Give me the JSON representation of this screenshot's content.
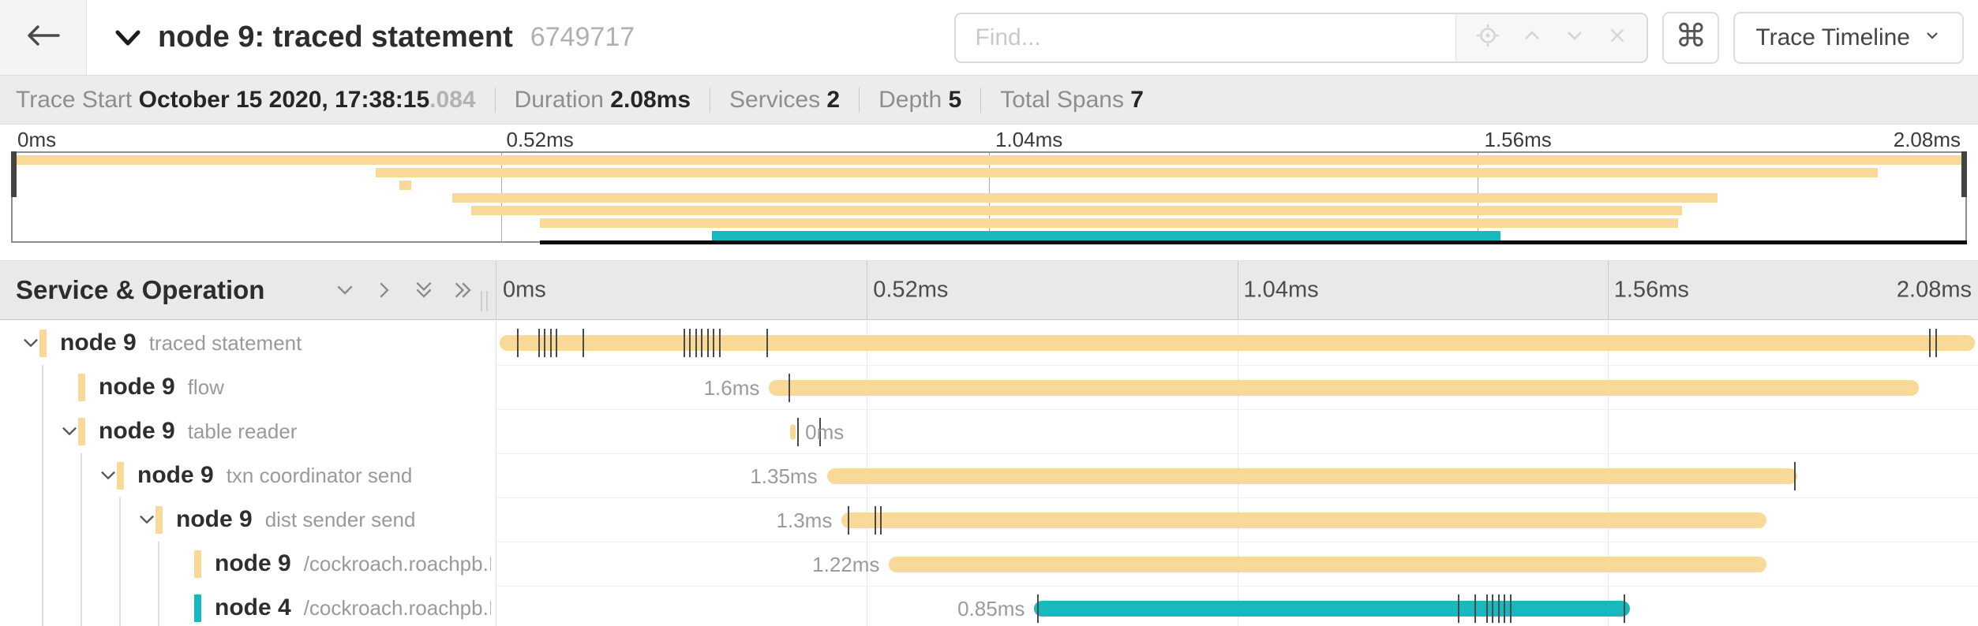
{
  "header": {
    "title": "node 9: traced statement",
    "trace_id": "6749717",
    "search": {
      "placeholder": "Find..."
    },
    "shortcut_button": "⌘",
    "view_dropdown": {
      "label": "Trace Timeline"
    }
  },
  "summary": [
    {
      "label": "Trace Start",
      "value": "October 15 2020, 17:38:15",
      "suffix": ".084"
    },
    {
      "label": "Duration",
      "value": "2.08ms"
    },
    {
      "label": "Services",
      "value": "2"
    },
    {
      "label": "Depth",
      "value": "5"
    },
    {
      "label": "Total Spans",
      "value": "7"
    }
  ],
  "colors": {
    "span_tan": "#F8D998",
    "span_teal": "#17B8BE",
    "tick_mark": "#4a4a4a",
    "header_bg": "#e9e9e9"
  },
  "minimap": {
    "ticks": [
      "0ms",
      "0.52ms",
      "1.04ms",
      "1.56ms",
      "2.08ms"
    ],
    "rows": [
      {
        "start": 0,
        "end": 100,
        "color": "#F8D998"
      },
      {
        "start": 18.6,
        "end": 95.5,
        "color": "#F8D998"
      },
      {
        "start": 19.8,
        "end": 20.4,
        "color": "#F8D998"
      },
      {
        "start": 22.5,
        "end": 87.3,
        "color": "#F8D998"
      },
      {
        "start": 23.5,
        "end": 85.5,
        "color": "#F8D998"
      },
      {
        "start": 27.0,
        "end": 85.3,
        "color": "#F8D998"
      },
      {
        "start": 35.8,
        "end": 76.2,
        "color": "#17B8BE"
      }
    ]
  },
  "timeline": {
    "left_header": "Service & Operation",
    "ticks": [
      "0ms",
      "0.52ms",
      "1.04ms",
      "1.56ms",
      "2.08ms"
    ],
    "spans": [
      {
        "service": "node 9",
        "operation": "traced statement",
        "depth": 0,
        "expander": true,
        "color": "#F8D998",
        "start": 0.2,
        "end": 99.8,
        "duration": "",
        "label_side": "none",
        "ticks": [
          1.4,
          2.8,
          3.2,
          3.6,
          4.0,
          5.8,
          12.6,
          13.0,
          13.4,
          13.8,
          14.2,
          14.6,
          15.0,
          18.2,
          96.7,
          97.1
        ]
      },
      {
        "service": "node 9",
        "operation": "flow",
        "depth": 1,
        "expander": false,
        "color": "#F8D998",
        "start": 18.4,
        "end": 96.0,
        "duration": "1.6ms",
        "label_side": "left",
        "ticks": [
          19.7
        ]
      },
      {
        "service": "node 9",
        "operation": "table reader",
        "depth": 1,
        "expander": true,
        "color": "#F8D998",
        "start": 19.8,
        "end": 20.2,
        "duration": "0ms",
        "label_side": "right",
        "ticks": [
          20.3,
          21.8
        ]
      },
      {
        "service": "node 9",
        "operation": "txn coordinator send",
        "depth": 2,
        "expander": true,
        "color": "#F8D998",
        "start": 22.3,
        "end": 87.8,
        "duration": "1.35ms",
        "label_side": "left",
        "ticks": [
          87.6
        ]
      },
      {
        "service": "node 9",
        "operation": "dist sender send",
        "depth": 3,
        "expander": true,
        "color": "#F8D998",
        "start": 23.3,
        "end": 85.7,
        "duration": "1.3ms",
        "label_side": "left",
        "ticks": [
          23.7,
          25.5,
          25.9
        ]
      },
      {
        "service": "node 9",
        "operation": "/cockroach.roachpb.I…",
        "depth": 4,
        "expander": false,
        "color": "#F8D998",
        "start": 26.5,
        "end": 85.7,
        "duration": "1.22ms",
        "label_side": "left",
        "ticks": []
      },
      {
        "service": "node 4",
        "operation": "/cockroach.roachpb.I…",
        "depth": 4,
        "expander": false,
        "color": "#17B8BE",
        "start": 36.3,
        "end": 76.5,
        "duration": "0.85ms",
        "label_side": "left",
        "ticks": [
          36.5,
          64.9,
          66.0,
          66.8,
          67.2,
          67.6,
          68.0,
          68.4,
          76.1
        ]
      }
    ]
  }
}
